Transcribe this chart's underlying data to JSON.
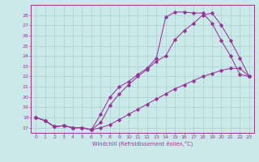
{
  "xlabel": "Windchill (Refroidissement éolien,°C)",
  "bg_color": "#cce9e9",
  "grid_color": "#aad4d4",
  "line_color": "#993399",
  "xlim": [
    -0.5,
    23.5
  ],
  "ylim": [
    16.5,
    29.0
  ],
  "xticks": [
    0,
    1,
    2,
    3,
    4,
    5,
    6,
    7,
    8,
    9,
    10,
    11,
    12,
    13,
    14,
    15,
    16,
    17,
    18,
    19,
    20,
    21,
    22,
    23
  ],
  "yticks": [
    17,
    18,
    19,
    20,
    21,
    22,
    23,
    24,
    25,
    26,
    27,
    28
  ],
  "line1_x": [
    0,
    1,
    2,
    3,
    4,
    5,
    6,
    7,
    8,
    9,
    10,
    11,
    12,
    13,
    14,
    15,
    16,
    17,
    18,
    19,
    20,
    21,
    22,
    23
  ],
  "line1_y": [
    18.0,
    17.7,
    17.1,
    17.2,
    17.0,
    17.0,
    16.8,
    17.0,
    17.3,
    17.8,
    18.3,
    18.8,
    19.3,
    19.8,
    20.3,
    20.8,
    21.2,
    21.6,
    22.0,
    22.3,
    22.6,
    22.8,
    22.8,
    22.0
  ],
  "line2_x": [
    0,
    1,
    2,
    3,
    4,
    5,
    6,
    7,
    8,
    9,
    10,
    11,
    12,
    13,
    14,
    15,
    16,
    17,
    18,
    19,
    20,
    21,
    22,
    23
  ],
  "line2_y": [
    18.0,
    17.7,
    17.1,
    17.2,
    17.0,
    17.0,
    16.8,
    17.5,
    19.2,
    20.3,
    21.2,
    22.0,
    22.7,
    23.5,
    24.0,
    25.6,
    26.5,
    27.2,
    28.0,
    28.2,
    27.0,
    25.5,
    23.8,
    22.0
  ],
  "line3_x": [
    0,
    1,
    2,
    3,
    4,
    5,
    6,
    7,
    8,
    9,
    10,
    11,
    12,
    13,
    14,
    15,
    16,
    17,
    18,
    19,
    20,
    21,
    22,
    23
  ],
  "line3_y": [
    18.0,
    17.7,
    17.1,
    17.2,
    17.0,
    17.0,
    16.8,
    18.3,
    20.0,
    21.0,
    21.5,
    22.2,
    22.8,
    23.8,
    27.8,
    28.3,
    28.3,
    28.2,
    28.2,
    27.2,
    25.5,
    24.0,
    22.2,
    22.0
  ]
}
